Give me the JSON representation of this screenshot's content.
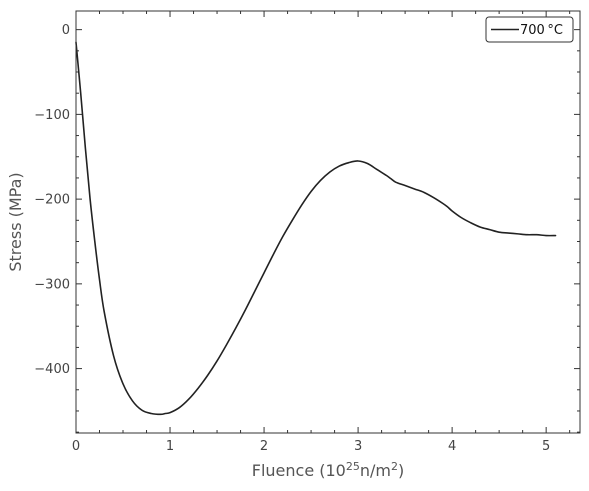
{
  "chart_data": {
    "type": "line",
    "title": "",
    "xlabel": {
      "text": "Fluence (10",
      "sup1": "25",
      "mid": "n/m",
      "sup2": "2",
      "end": ")"
    },
    "ylabel": "Stress (MPa)",
    "xlim": [
      0,
      5.36
    ],
    "ylim": [
      -476,
      22
    ],
    "xticks": [
      0,
      1,
      2,
      3,
      4,
      5
    ],
    "yticks": [
      0,
      -100,
      -200,
      -300,
      -400
    ],
    "xtick_labels": [
      "0",
      "1",
      "2",
      "3",
      "4",
      "5"
    ],
    "ytick_labels": [
      "0",
      "−100",
      "−200",
      "−300",
      "−400"
    ],
    "legend_position": "top-right",
    "grid": false,
    "series": [
      {
        "name": "700 °C",
        "color": "#222222",
        "x": [
          0.0,
          0.05,
          0.1,
          0.15,
          0.2,
          0.25,
          0.3,
          0.4,
          0.5,
          0.6,
          0.7,
          0.8,
          0.9,
          0.95,
          1.0,
          1.1,
          1.2,
          1.3,
          1.4,
          1.5,
          1.6,
          1.7,
          1.8,
          1.9,
          2.0,
          2.1,
          2.2,
          2.3,
          2.4,
          2.5,
          2.6,
          2.7,
          2.8,
          2.9,
          3.0,
          3.1,
          3.2,
          3.3,
          3.35,
          3.4,
          3.5,
          3.6,
          3.7,
          3.8,
          3.9,
          3.95,
          4.0,
          4.1,
          4.2,
          4.3,
          4.4,
          4.5,
          4.6,
          4.7,
          4.8,
          4.9,
          5.0,
          5.1
        ],
        "y": [
          -15,
          -75,
          -140,
          -200,
          -250,
          -295,
          -333,
          -385,
          -418,
          -438,
          -449,
          -453,
          -454,
          -453,
          -452,
          -446,
          -436,
          -423,
          -408,
          -391,
          -372,
          -352,
          -331,
          -309,
          -287,
          -265,
          -244,
          -225,
          -207,
          -191,
          -178,
          -168,
          -161,
          -157,
          -155,
          -158,
          -165,
          -172,
          -176,
          -180,
          -184,
          -188,
          -192,
          -198,
          -205,
          -209,
          -214,
          -222,
          -228,
          -233,
          -236,
          -239,
          -240,
          -241,
          -242,
          -242,
          -243,
          -243
        ]
      }
    ]
  }
}
